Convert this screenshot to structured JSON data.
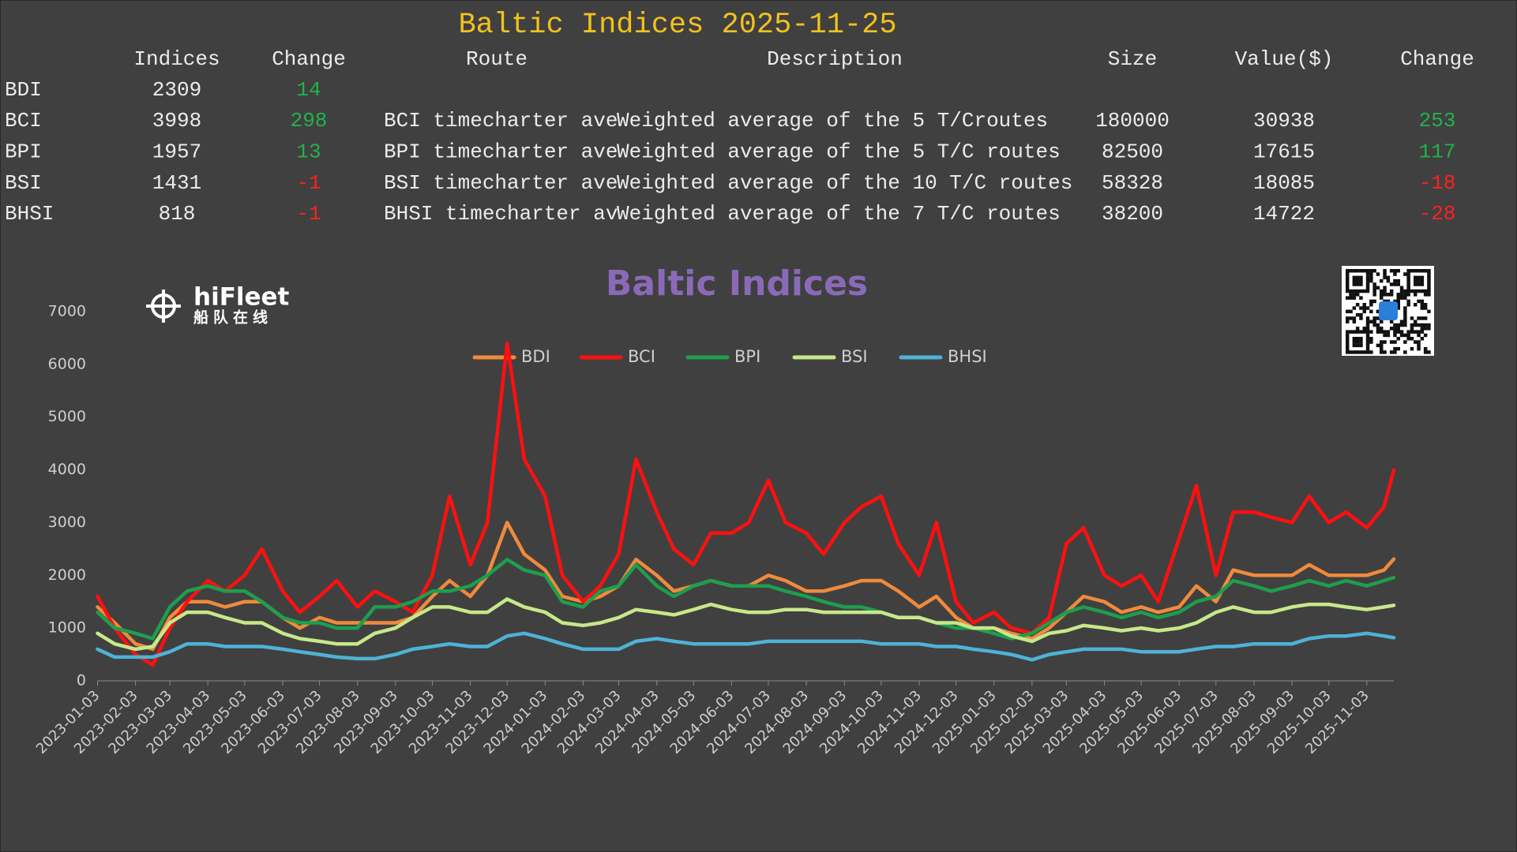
{
  "title": "Baltic Indices 2025-11-25",
  "table": {
    "columns": [
      "Indices",
      "Change",
      "Route",
      "Description",
      "Size",
      "Value($)",
      "Change"
    ],
    "rows": [
      [
        "BDI",
        2309,
        14
      ],
      [
        "BCI",
        3998,
        298,
        "BCI timecharter ave",
        "Weighted average of the 5 T/Croutes",
        180000,
        30938,
        253
      ],
      [
        "BPI",
        1957,
        13,
        "BPI timecharter ave",
        "Weighted average of the 5 T/C routes",
        82500,
        17615,
        117
      ],
      [
        "BSI",
        1431,
        -1,
        "BSI timecharter ave",
        "Weighted average of the 10 T/C routes",
        58328,
        18085,
        -18
      ],
      [
        "BHSI",
        818,
        -1,
        "BHSI timecharter av",
        "Weighted average of the 7 T/C routes",
        38200,
        14722,
        -28
      ]
    ]
  },
  "logo": {
    "name": "hiFleet",
    "subtitle": "船队在线"
  },
  "chart_data": {
    "type": "line",
    "title": "Baltic Indices",
    "legend": "top",
    "grid": false,
    "x": [
      "2023-01-03",
      "2023-01-17",
      "2023-02-03",
      "2023-02-17",
      "2023-03-03",
      "2023-03-17",
      "2023-04-03",
      "2023-04-17",
      "2023-05-03",
      "2023-05-17",
      "2023-06-03",
      "2023-06-17",
      "2023-07-03",
      "2023-07-17",
      "2023-08-03",
      "2023-08-17",
      "2023-09-03",
      "2023-09-17",
      "2023-10-03",
      "2023-10-17",
      "2023-11-03",
      "2023-11-17",
      "2023-12-03",
      "2023-12-17",
      "2024-01-03",
      "2024-01-17",
      "2024-02-03",
      "2024-02-17",
      "2024-03-03",
      "2024-03-17",
      "2024-04-03",
      "2024-04-17",
      "2024-05-03",
      "2024-05-17",
      "2024-06-03",
      "2024-06-17",
      "2024-07-03",
      "2024-07-17",
      "2024-08-03",
      "2024-08-17",
      "2024-09-03",
      "2024-09-17",
      "2024-10-03",
      "2024-10-17",
      "2024-11-03",
      "2024-11-17",
      "2024-12-03",
      "2024-12-17",
      "2025-01-03",
      "2025-01-17",
      "2025-02-03",
      "2025-02-17",
      "2025-03-03",
      "2025-03-17",
      "2025-04-03",
      "2025-04-17",
      "2025-05-03",
      "2025-05-17",
      "2025-06-03",
      "2025-06-17",
      "2025-07-03",
      "2025-07-17",
      "2025-08-03",
      "2025-08-17",
      "2025-09-03",
      "2025-09-17",
      "2025-10-03",
      "2025-10-17",
      "2025-11-03",
      "2025-11-17",
      "2025-11-25"
    ],
    "xlim": [
      "2023-01-03",
      "2025-11-25"
    ],
    "xticks": [
      "2023-01-03",
      "2023-02-03",
      "2023-03-03",
      "2023-04-03",
      "2023-05-03",
      "2023-06-03",
      "2023-07-03",
      "2023-08-03",
      "2023-09-03",
      "2023-10-03",
      "2023-11-03",
      "2023-12-03",
      "2024-01-03",
      "2024-02-03",
      "2024-03-03",
      "2024-04-03",
      "2024-05-03",
      "2024-06-03",
      "2024-07-03",
      "2024-08-03",
      "2024-09-03",
      "2024-10-03",
      "2024-11-03",
      "2024-12-03",
      "2025-01-03",
      "2025-02-03",
      "2025-03-03",
      "2025-04-03",
      "2025-05-03",
      "2025-06-03",
      "2025-07-03",
      "2025-08-03",
      "2025-09-03",
      "2025-10-03",
      "2025-11-03"
    ],
    "ylim": [
      0,
      7000
    ],
    "yticks": [
      0,
      1000,
      2000,
      3000,
      4000,
      5000,
      6000,
      7000
    ],
    "series": [
      {
        "name": "BDI",
        "color": "#f08a3c",
        "values": [
          1400,
          1100,
          700,
          600,
          1200,
          1500,
          1500,
          1400,
          1500,
          1500,
          1200,
          1000,
          1200,
          1100,
          1100,
          1100,
          1100,
          1200,
          1600,
          1900,
          1600,
          2000,
          3000,
          2400,
          2100,
          1600,
          1500,
          1600,
          1800,
          2300,
          2000,
          1700,
          1800,
          1900,
          1800,
          1800,
          2000,
          1900,
          1700,
          1700,
          1800,
          1900,
          1900,
          1700,
          1400,
          1600,
          1200,
          1000,
          1000,
          900,
          800,
          1000,
          1300,
          1600,
          1500,
          1300,
          1400,
          1300,
          1400,
          1800,
          1500,
          2100,
          2000,
          2000,
          2000,
          2200,
          2000,
          2000,
          2000,
          2100,
          2309
        ]
      },
      {
        "name": "BCI",
        "color": "#ff1010",
        "values": [
          1600,
          1000,
          500,
          300,
          1000,
          1500,
          1900,
          1700,
          2000,
          2500,
          1700,
          1300,
          1600,
          1900,
          1400,
          1700,
          1500,
          1300,
          2000,
          3500,
          2200,
          3000,
          6400,
          4200,
          3500,
          2000,
          1500,
          1800,
          2400,
          4200,
          3200,
          2500,
          2200,
          2800,
          2800,
          3000,
          3800,
          3000,
          2800,
          2400,
          3000,
          3300,
          3500,
          2600,
          2000,
          3000,
          1500,
          1100,
          1300,
          1000,
          900,
          1200,
          2600,
          2900,
          2000,
          1800,
          2000,
          1500,
          2700,
          3700,
          2000,
          3200,
          3200,
          3100,
          3000,
          3500,
          3000,
          3200,
          2900,
          3300,
          3998
        ]
      },
      {
        "name": "BPI",
        "color": "#1e9e4e",
        "values": [
          1300,
          1000,
          900,
          800,
          1400,
          1700,
          1800,
          1700,
          1700,
          1500,
          1200,
          1100,
          1100,
          1000,
          1000,
          1400,
          1400,
          1500,
          1700,
          1700,
          1800,
          2000,
          2300,
          2100,
          2000,
          1500,
          1400,
          1700,
          1800,
          2200,
          1800,
          1600,
          1800,
          1900,
          1800,
          1800,
          1800,
          1700,
          1600,
          1500,
          1400,
          1400,
          1300,
          1200,
          1200,
          1100,
          1000,
          1000,
          900,
          800,
          900,
          1100,
          1300,
          1400,
          1300,
          1200,
          1300,
          1200,
          1300,
          1500,
          1600,
          1900,
          1800,
          1700,
          1800,
          1900,
          1800,
          1900,
          1800,
          1900,
          1957
        ]
      },
      {
        "name": "BSI",
        "color": "#c6e88a",
        "values": [
          900,
          700,
          600,
          650,
          1100,
          1300,
          1300,
          1200,
          1100,
          1100,
          900,
          800,
          750,
          700,
          700,
          900,
          1000,
          1200,
          1400,
          1400,
          1300,
          1300,
          1550,
          1400,
          1300,
          1100,
          1050,
          1100,
          1200,
          1350,
          1300,
          1250,
          1350,
          1450,
          1350,
          1300,
          1300,
          1350,
          1350,
          1300,
          1300,
          1300,
          1300,
          1200,
          1200,
          1100,
          1100,
          1000,
          1000,
          850,
          750,
          900,
          950,
          1050,
          1000,
          950,
          1000,
          950,
          1000,
          1100,
          1300,
          1400,
          1300,
          1300,
          1400,
          1450,
          1450,
          1400,
          1350,
          1400,
          1431
        ]
      },
      {
        "name": "BHSI",
        "color": "#4db3d6",
        "values": [
          600,
          450,
          450,
          450,
          550,
          700,
          700,
          650,
          650,
          650,
          600,
          550,
          500,
          450,
          420,
          420,
          500,
          600,
          650,
          700,
          650,
          650,
          850,
          900,
          800,
          700,
          600,
          600,
          600,
          750,
          800,
          750,
          700,
          700,
          700,
          700,
          750,
          750,
          750,
          750,
          750,
          750,
          700,
          700,
          700,
          650,
          650,
          600,
          550,
          500,
          400,
          500,
          550,
          600,
          600,
          600,
          550,
          550,
          550,
          600,
          650,
          650,
          700,
          700,
          700,
          800,
          850,
          850,
          900,
          850,
          818
        ]
      }
    ]
  }
}
